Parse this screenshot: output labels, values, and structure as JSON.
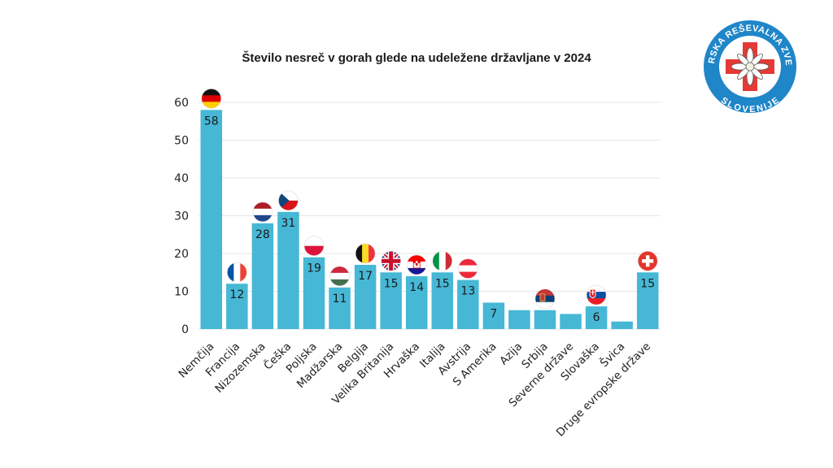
{
  "chart_data": {
    "type": "bar",
    "title": "Število nesreč v gorah glede na udeležene državljane v 2024",
    "xlabel": "",
    "ylabel": "",
    "ylim": [
      0,
      60
    ],
    "yticks": [
      0,
      10,
      20,
      30,
      40,
      50,
      60
    ],
    "grid": true,
    "bar_color": "#46b8d6",
    "categories": [
      "Nemčija",
      "Francija",
      "Nizozemska",
      "Češka",
      "Poljska",
      "Madžarska",
      "Belgija",
      "Velika Britanija",
      "Hrvaška",
      "Italija",
      "Avstrija",
      "S Amerika",
      "Azija",
      "Srbija",
      "Severne države",
      "Slovaška",
      "Švica",
      "Druge evropske države"
    ],
    "values": [
      58,
      12,
      28,
      31,
      19,
      11,
      17,
      15,
      14,
      15,
      13,
      7,
      5,
      5,
      4,
      6,
      2,
      15
    ],
    "data_labels": [
      "58",
      "12",
      "28",
      "31",
      "19",
      "11",
      "17",
      "15",
      "14",
      "15",
      "13",
      "7",
      "",
      "",
      "",
      "6",
      "",
      "15"
    ],
    "flags": [
      "germany-flag",
      "france-flag",
      "netherlands-flag",
      "czechia-flag",
      "poland-flag",
      "hungary-flag",
      "belgium-flag",
      "uk-flag",
      "croatia-flag",
      "italy-flag",
      "austria-flag",
      "",
      "",
      "serbia-flag",
      "",
      "slovakia-flag",
      "",
      "switzerland-flag"
    ]
  },
  "logo": {
    "text_top": "GORSKA REŠEVALNA ZVEZA",
    "text_bottom": "SLOVENIJE",
    "ring_color": "#1f86c8",
    "cross_color": "#e53935"
  }
}
